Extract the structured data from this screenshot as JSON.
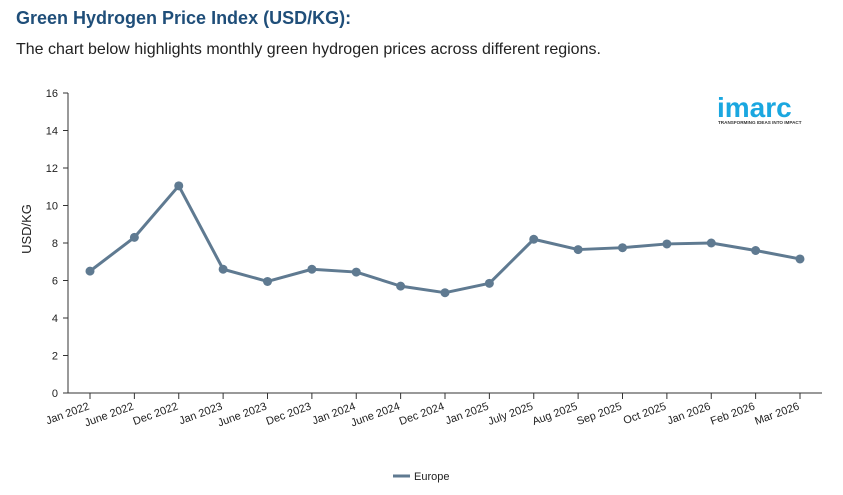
{
  "header": {
    "title": "Green Hydrogen Price Index (USD/KG):",
    "subtitle": "The chart below highlights monthly green hydrogen prices across different regions."
  },
  "logo": {
    "name": "imarc",
    "tagline": "TRANSFORMING IDEAS INTO IMPACT",
    "color": "#1aa7e0"
  },
  "chart_data": {
    "type": "line",
    "title": "Green Hydrogen Price Index (USD/KG):",
    "xlabel": "",
    "ylabel": "USD/KG",
    "ylim": [
      0,
      16
    ],
    "yticks": [
      0,
      2,
      4,
      6,
      8,
      10,
      12,
      14,
      16
    ],
    "grid": false,
    "legend_position": "bottom",
    "categories": [
      "Jan 2022",
      "June 2022",
      "Dec 2022",
      "Jan 2023",
      "June 2023",
      "Dec 2023",
      "Jan 2024",
      "June 2024",
      "Dec 2024",
      "Jan 2025",
      "July 2025",
      "Aug 2025",
      "Sep 2025",
      "Oct 2025",
      "Jan 2026",
      "Feb 2026",
      "Mar 2026"
    ],
    "series": [
      {
        "name": "Europe",
        "color": "#5f7a91",
        "values": [
          6.5,
          8.3,
          11.05,
          6.6,
          5.95,
          6.6,
          6.45,
          5.7,
          5.35,
          5.85,
          8.2,
          7.65,
          7.75,
          7.95,
          8.0,
          7.6,
          7.15
        ]
      }
    ]
  }
}
